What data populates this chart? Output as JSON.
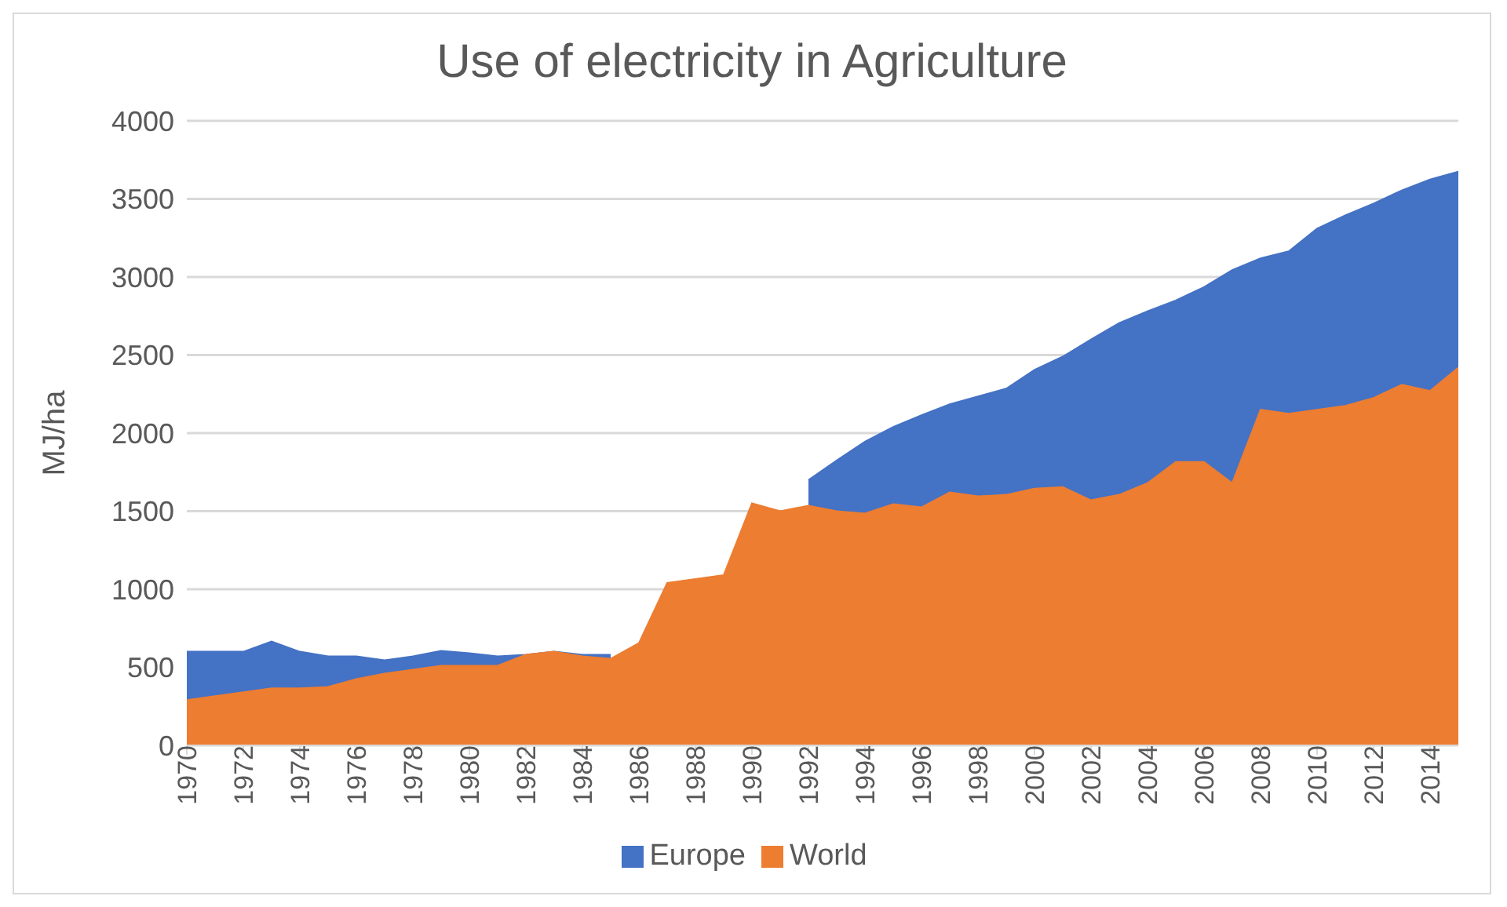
{
  "chart_data": {
    "type": "area",
    "title": "Use of electricity in Agriculture",
    "ylabel": "MJ/ha",
    "x": [
      1970,
      1971,
      1972,
      1973,
      1974,
      1975,
      1976,
      1977,
      1978,
      1979,
      1980,
      1981,
      1982,
      1983,
      1984,
      1985,
      1986,
      1987,
      1988,
      1989,
      1990,
      1991,
      1992,
      1993,
      1994,
      1995,
      1996,
      1997,
      1998,
      1999,
      2000,
      2001,
      2002,
      2003,
      2004,
      2005,
      2006,
      2007,
      2008,
      2009,
      2010,
      2011,
      2012,
      2013,
      2014,
      2015
    ],
    "series": [
      {
        "name": "Europe",
        "color": "#4472c4",
        "values": [
          600,
          600,
          600,
          665,
          600,
          570,
          570,
          545,
          570,
          605,
          590,
          570,
          580,
          600,
          580,
          580,
          null,
          null,
          null,
          null,
          null,
          null,
          1700,
          1825,
          1945,
          2040,
          2115,
          2185,
          2235,
          2285,
          2405,
          2490,
          2600,
          2705,
          2780,
          2850,
          2935,
          3045,
          3120,
          3165,
          3310,
          3395,
          3470,
          3555,
          3625,
          3675
        ]
      },
      {
        "name": "World",
        "color": "#ed7d31",
        "values": [
          290,
          315,
          340,
          365,
          365,
          375,
          425,
          460,
          485,
          510,
          510,
          510,
          580,
          600,
          570,
          555,
          655,
          1040,
          1065,
          1090,
          1550,
          1500,
          1535,
          1500,
          1485,
          1545,
          1525,
          1620,
          1595,
          1605,
          1645,
          1655,
          1570,
          1605,
          1680,
          1815,
          1815,
          1680,
          2150,
          2125,
          2150,
          2175,
          2225,
          2310,
          2270,
          2420
        ]
      }
    ],
    "xlim": [
      1970,
      2015
    ],
    "xticks": [
      1970,
      1972,
      1974,
      1976,
      1978,
      1980,
      1982,
      1984,
      1986,
      1988,
      1990,
      1992,
      1994,
      1996,
      1998,
      2000,
      2002,
      2004,
      2006,
      2008,
      2010,
      2012,
      2014
    ],
    "ylim": [
      0,
      4000
    ],
    "yticks": [
      0,
      500,
      1000,
      1500,
      2000,
      2500,
      3000,
      3500,
      4000
    ],
    "grid": "y",
    "legend": "bottom"
  }
}
